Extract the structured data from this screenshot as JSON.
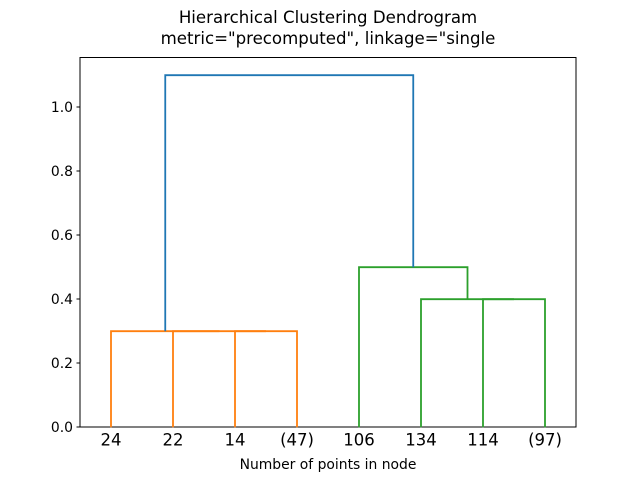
{
  "chart_data": {
    "type": "dendrogram",
    "title": "Hierarchical Clustering Dendrogram",
    "subtitle": "metric=\"precomputed\", linkage=\"single",
    "xlabel": "Number of points in node",
    "orientation": "top",
    "background": "#ffffff",
    "axes_color": "#000000",
    "xlim": [
      0,
      80
    ],
    "ylim": [
      0,
      1.155
    ],
    "yticks": [
      0,
      0.2,
      0.4,
      0.6,
      0.8,
      1.0
    ],
    "ytick_labels": [
      "0.0",
      "0.2",
      "0.4",
      "0.6",
      "0.8",
      "1.0"
    ],
    "grid": false,
    "legend": false,
    "leaves": [
      {
        "label": "24",
        "x": 5
      },
      {
        "label": "22",
        "x": 15
      },
      {
        "label": "14",
        "x": 25
      },
      {
        "label": "(47)",
        "x": 35
      },
      {
        "label": "106",
        "x": 45
      },
      {
        "label": "134",
        "x": 55
      },
      {
        "label": "114",
        "x": 65
      },
      {
        "label": "(97)",
        "x": 75
      }
    ],
    "links": [
      {
        "x1": 25,
        "h1": 0,
        "x2": 35,
        "h2": 0,
        "height": 0.3,
        "color": "#ff7f0e"
      },
      {
        "x1": 15,
        "h1": 0,
        "x2": 30,
        "h2": 0.3,
        "height": 0.3,
        "color": "#ff7f0e"
      },
      {
        "x1": 5,
        "h1": 0,
        "x2": 22.5,
        "h2": 0.3,
        "height": 0.3,
        "color": "#ff7f0e"
      },
      {
        "x1": 65,
        "h1": 0,
        "x2": 75,
        "h2": 0,
        "height": 0.4,
        "color": "#2ca02c"
      },
      {
        "x1": 55,
        "h1": 0,
        "x2": 70,
        "h2": 0.4,
        "height": 0.4,
        "color": "#2ca02c"
      },
      {
        "x1": 45,
        "h1": 0,
        "x2": 62.5,
        "h2": 0.4,
        "height": 0.5,
        "color": "#2ca02c"
      },
      {
        "x1": 13.75,
        "h1": 0.3,
        "x2": 53.75,
        "h2": 0.5,
        "height": 1.1,
        "color": "#1f77b4"
      }
    ],
    "colors": {
      "above_threshold": "#1f77b4",
      "cluster_left": "#ff7f0e",
      "cluster_right": "#2ca02c"
    }
  }
}
